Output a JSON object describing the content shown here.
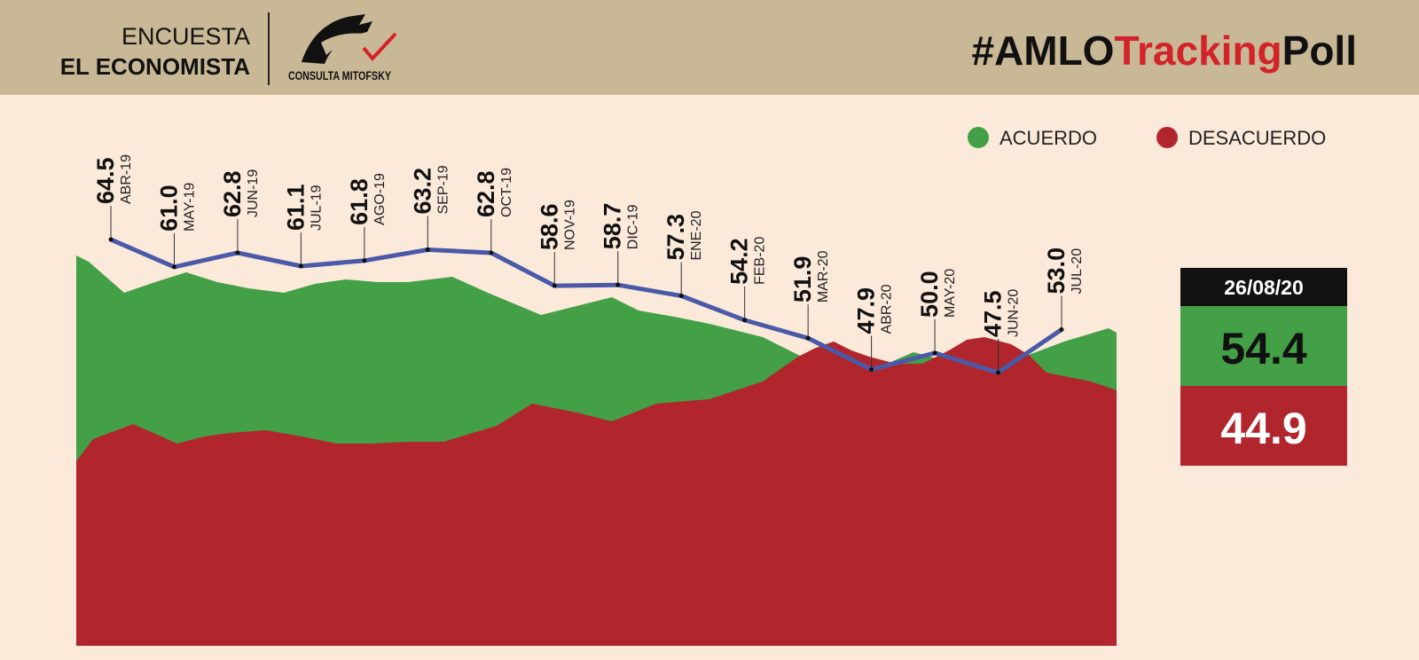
{
  "header": {
    "survey": "ENCUESTA",
    "outlet": "EL ECONOMISTA",
    "pollster": "CONSULTA MITOFSKY",
    "title_parts": [
      "#AMLO",
      "Tracking",
      "Poll"
    ]
  },
  "chart_data": {
    "type": "line",
    "categories": [
      "ABR-19",
      "MAY-19",
      "JUN-19",
      "JUL-19",
      "AGO-19",
      "SEP-19",
      "OCT-19",
      "NOV-19",
      "DIC-19",
      "ENE-20",
      "FEB-20",
      "MAR-20",
      "ABR-20",
      "MAY-20",
      "JUN-20",
      "JUL-20"
    ],
    "values": [
      64.5,
      61.0,
      62.8,
      61.1,
      61.8,
      63.2,
      62.8,
      58.6,
      58.7,
      57.3,
      54.2,
      51.9,
      47.9,
      50.0,
      47.5,
      53.0
    ],
    "value_labels": [
      "64.5",
      "61.0",
      "62.8",
      "61.1",
      "61.8",
      "63.2",
      "62.8",
      "58.6",
      "58.7",
      "57.3",
      "54.2",
      "51.9",
      "47.9",
      "50.0",
      "47.5",
      "53.0"
    ],
    "color": "#4a5aa8",
    "legend": [
      {
        "name": "ACUERDO",
        "color": "#43a047"
      },
      {
        "name": "DESACUERDO",
        "color": "#b1262d"
      }
    ]
  },
  "summary": {
    "date": "26/08/20",
    "acuerdo": 54.4,
    "desacuerdo": 44.9
  }
}
